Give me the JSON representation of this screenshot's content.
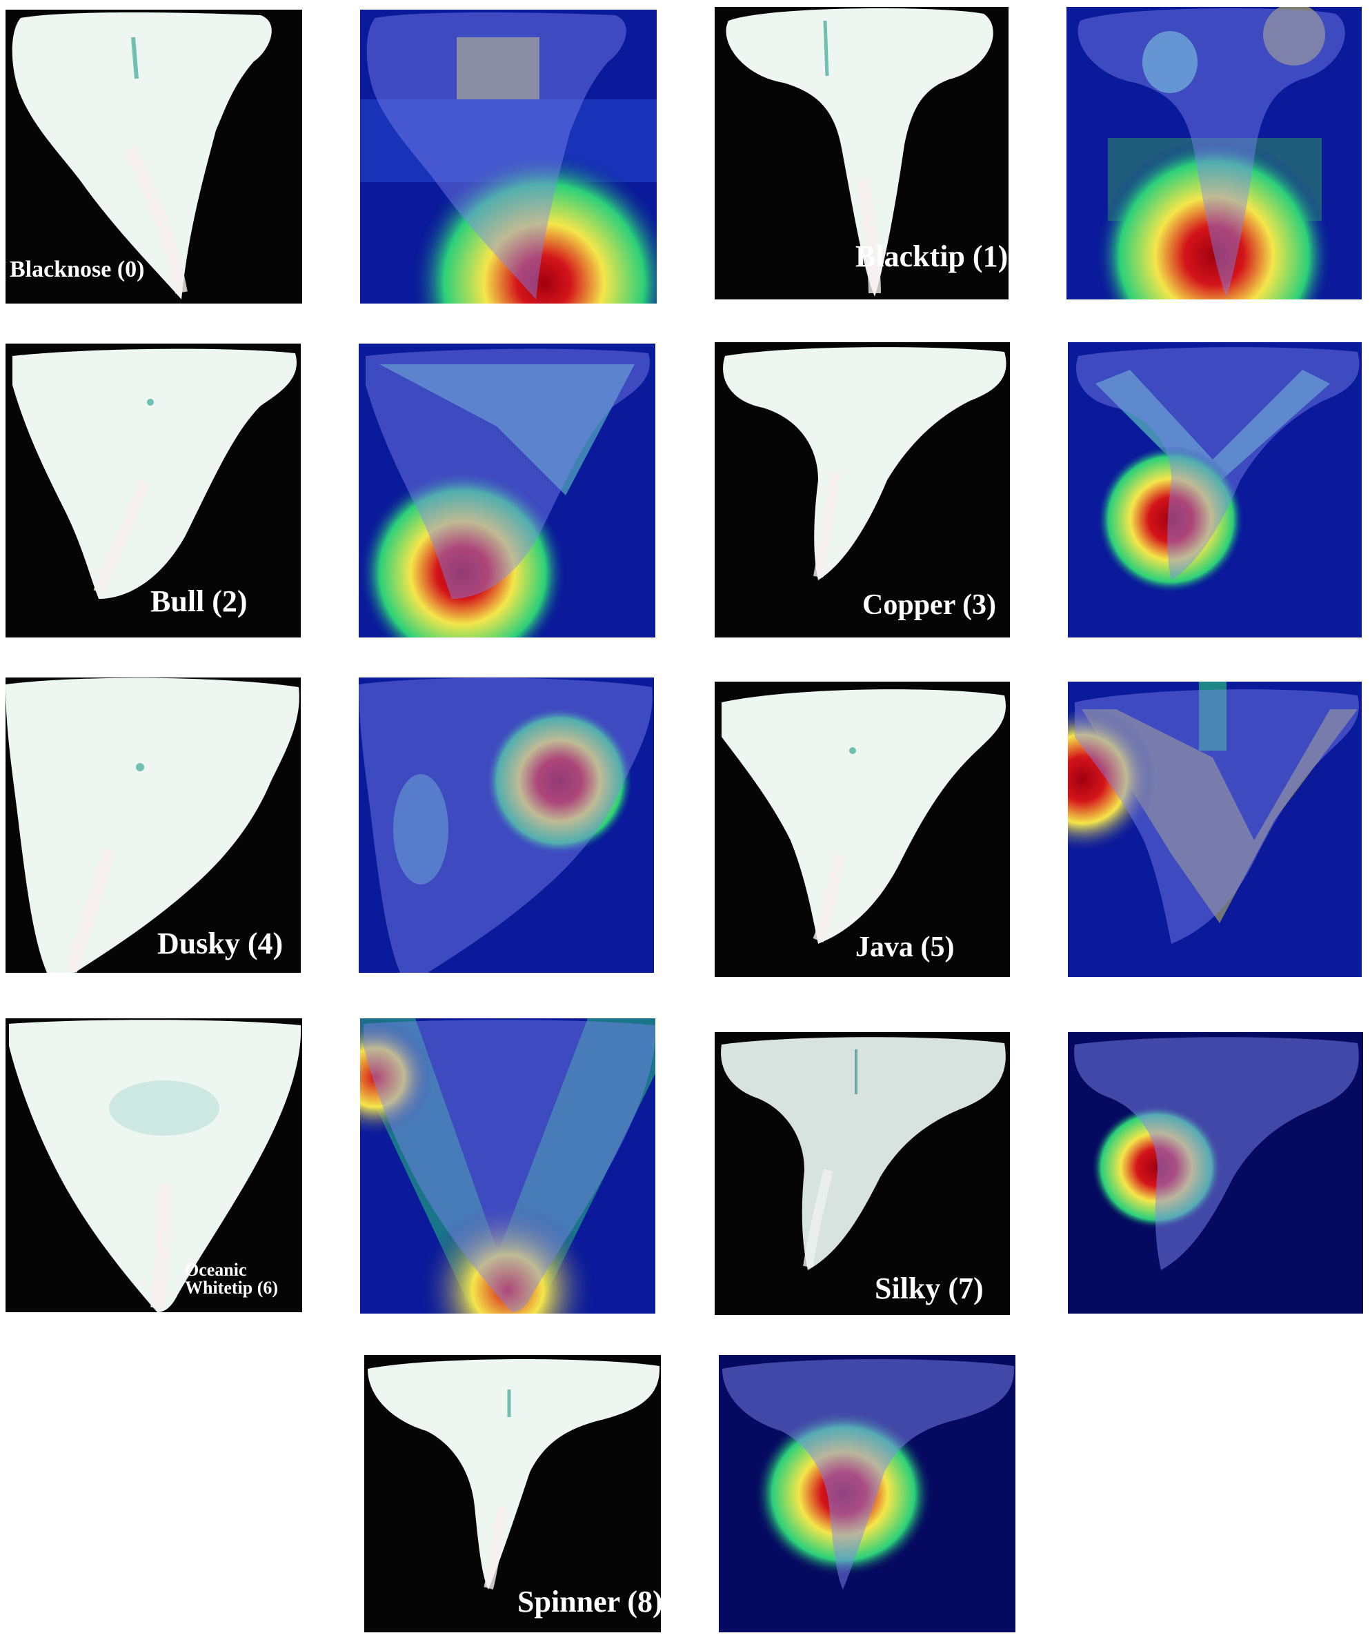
{
  "colors": {
    "photo_background": "#050505",
    "tooth_enamel": "#eef6f2",
    "tooth_highlight": "#f8efef",
    "heatmap_cool": "#0a1a9a",
    "heatmap_mid": "#7fffd0",
    "heatmap_warm": "#f4e64a",
    "heatmap_hot": "#d4141a",
    "overlay_tooth": "#7f86f0"
  },
  "specimens": [
    {
      "id": 0,
      "name": "Blacknose",
      "label": "Blacknose (0)",
      "tooth_shape": "triangle-broad-left-serrated"
    },
    {
      "id": 1,
      "name": "Blacktip",
      "label": "Blacktip (1)",
      "tooth_shape": "narrow-central-cusp"
    },
    {
      "id": 2,
      "name": "Bull",
      "label": "Bull (2)",
      "tooth_shape": "broad-triangle-serrated"
    },
    {
      "id": 3,
      "name": "Copper",
      "label": "Copper (3)",
      "tooth_shape": "oblique-cusp"
    },
    {
      "id": 4,
      "name": "Dusky",
      "label": "Dusky (4)",
      "tooth_shape": "broad-triangle-serrated"
    },
    {
      "id": 5,
      "name": "Java",
      "label": "Java (5)",
      "tooth_shape": "broad-triangle-serrated"
    },
    {
      "id": 6,
      "name": "Oceanic Whitetip",
      "label_line1": "Oceanic",
      "label_line2": "Whitetip (6)",
      "tooth_shape": "very-broad-triangle-serrated"
    },
    {
      "id": 7,
      "name": "Silky",
      "label": "Silky (7)",
      "tooth_shape": "oblique-serrated"
    },
    {
      "id": 8,
      "name": "Spinner",
      "label": "Spinner (8)",
      "tooth_shape": "narrow-central-cusp"
    }
  ]
}
